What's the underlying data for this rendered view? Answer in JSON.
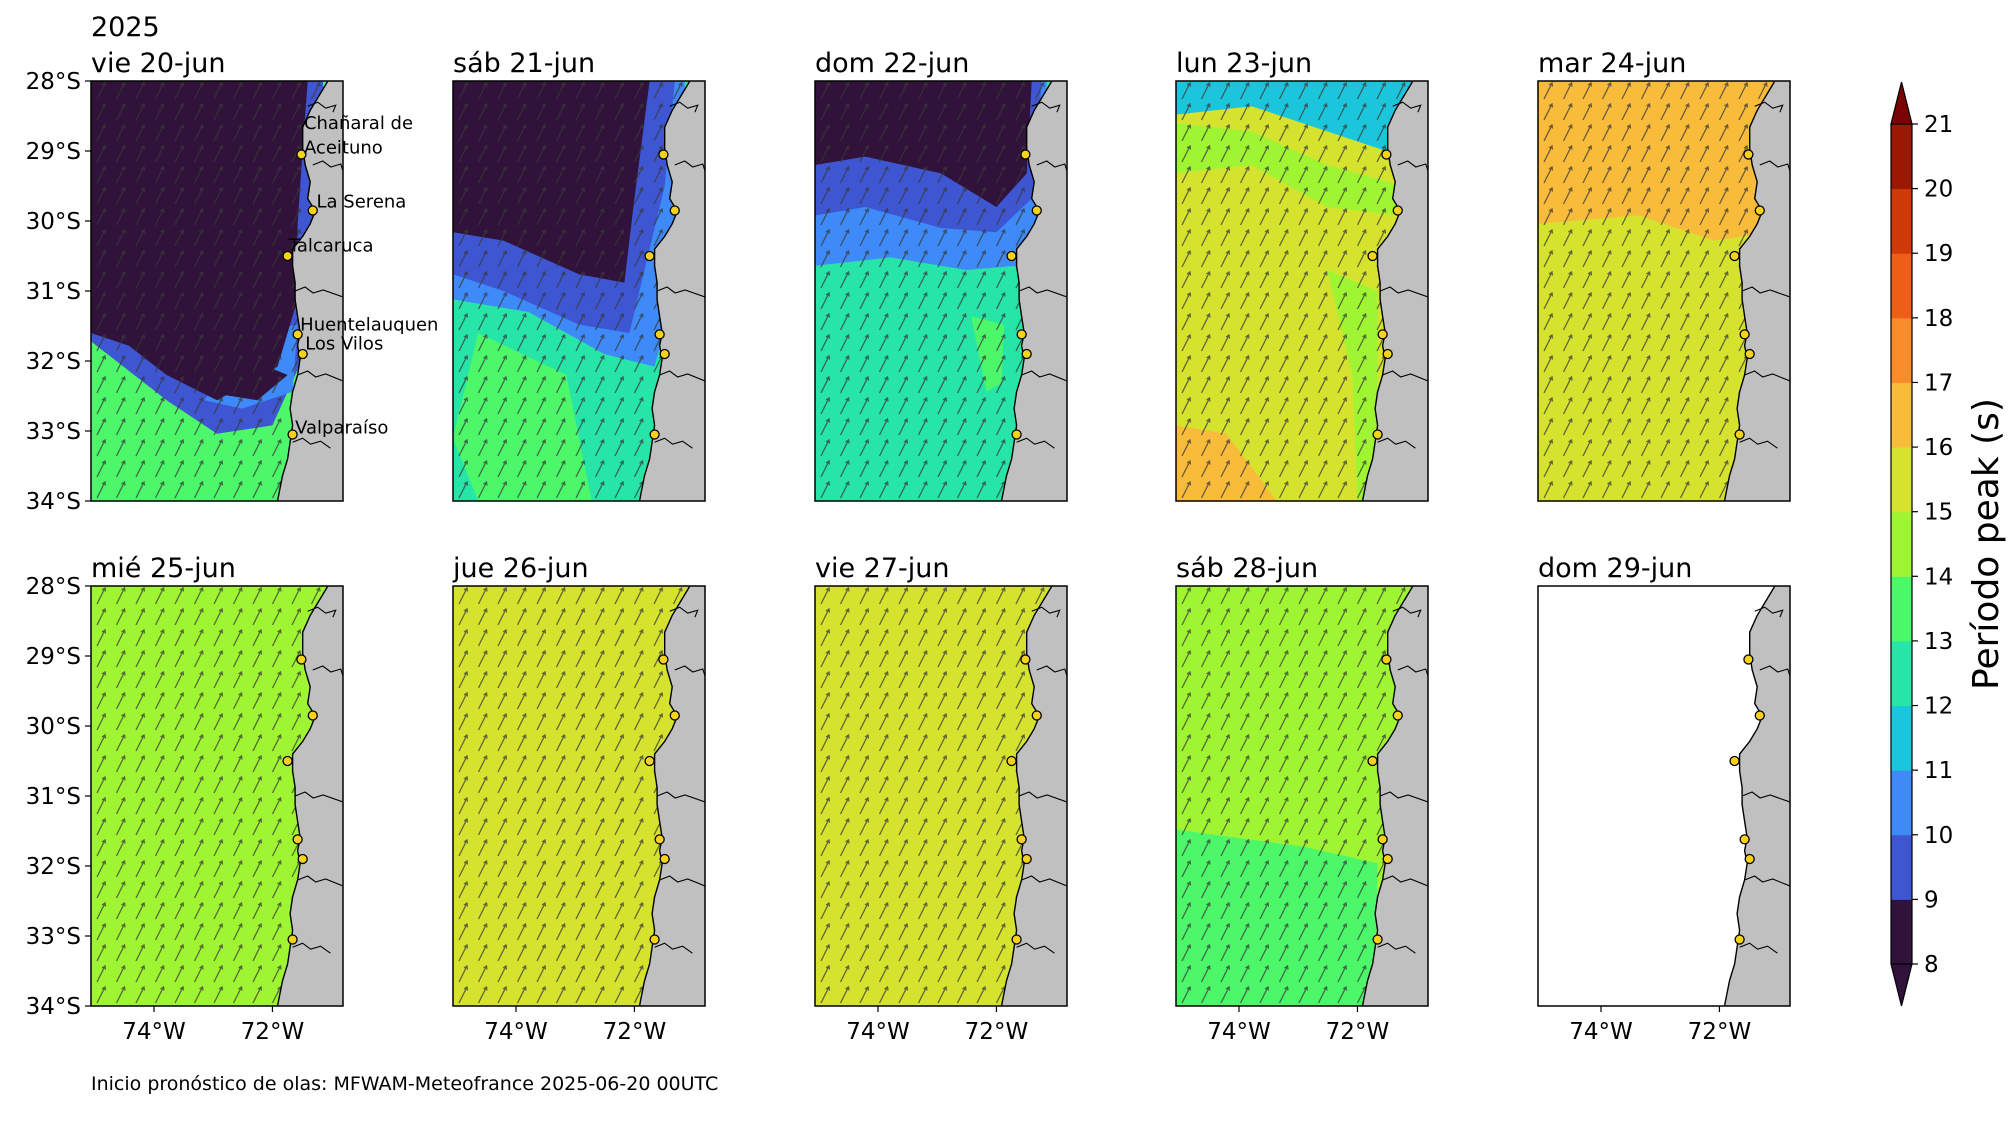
{
  "year": "2025",
  "panels": [
    {
      "title": "vie 20-jun",
      "state": "mix20"
    },
    {
      "title": "sáb 21-jun",
      "state": "mix21"
    },
    {
      "title": "dom 22-jun",
      "state": "mix22"
    },
    {
      "title": "lun 23-jun",
      "state": "mix23"
    },
    {
      "title": "mar 24-jun",
      "state": "mix24"
    },
    {
      "title": "mié 25-jun",
      "state": "uniform",
      "fill": "#9ff531"
    },
    {
      "title": "jue 26-jun",
      "state": "uniform",
      "fill": "#d5e32f"
    },
    {
      "title": "vie 27-jun",
      "state": "uniform",
      "fill": "#d5e32f"
    },
    {
      "title": "sáb 28-jun",
      "state": "mix28"
    },
    {
      "title": "dom 29-jun",
      "state": "blank"
    }
  ],
  "lat_ticks": [
    "28°S",
    "29°S",
    "30°S",
    "31°S",
    "32°S",
    "33°S",
    "34°S"
  ],
  "lon_ticks": [
    "74°W",
    "72°W"
  ],
  "places": [
    {
      "name": "Chañaral de",
      "lat": -28.6
    },
    {
      "name": "Aceituno",
      "lat": -28.95
    },
    {
      "name": "La Serena",
      "lat": -29.72
    },
    {
      "name": "Talcaruca",
      "lat": -30.35
    },
    {
      "name": "Huentelauquen",
      "lat": -31.48
    },
    {
      "name": "Los Vilos",
      "lat": -31.75
    },
    {
      "name": "Valparaíso",
      "lat": -32.95
    }
  ],
  "colorbar": {
    "title": "Período peak (s)",
    "ticks": [
      "8",
      "9",
      "10",
      "11",
      "12",
      "13",
      "14",
      "15",
      "16",
      "17",
      "18",
      "19",
      "20",
      "21"
    ],
    "colors": [
      "#30123b",
      "#3e56d2",
      "#3d8af8",
      "#1bc6dc",
      "#26e5a7",
      "#4cf86a",
      "#9ff531",
      "#d5e32f",
      "#f9bb3a",
      "#fb8c2a",
      "#ed5f16",
      "#cf3b08",
      "#9b1802"
    ],
    "under_color": "#30123b",
    "over_color": "#7a0403"
  },
  "land_color": "#c0c0c0",
  "footer": "Inicio pronóstico de olas: MFWAM-Meteofrance 2025-06-20 00UTC"
}
